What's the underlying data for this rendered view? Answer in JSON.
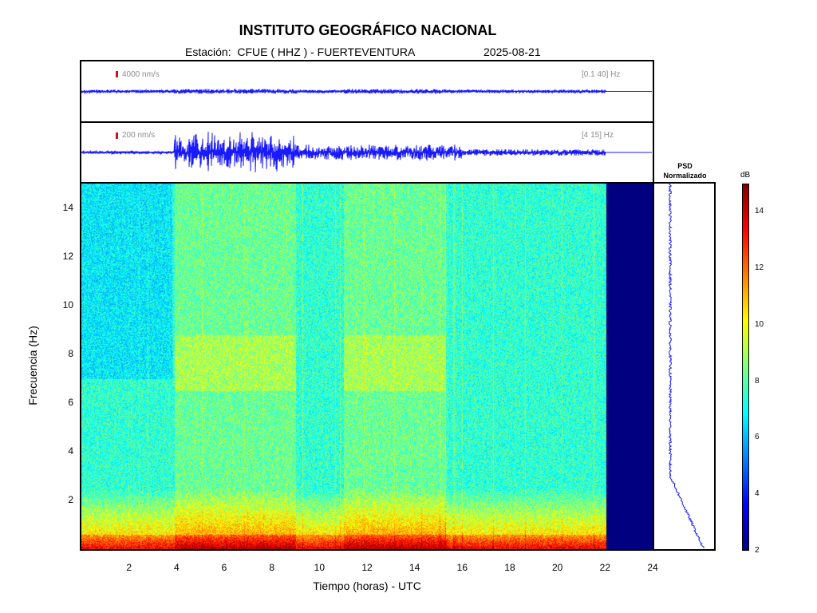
{
  "header": {
    "title": "INSTITUTO GEOGRÁFICO NACIONAL",
    "station": "Estación:  CFUE ( HHZ ) - FUERTEVENTURA",
    "date": "2025-08-21"
  },
  "trace_panels": [
    {
      "scale_label": "4000 nm/s",
      "band_label": "[0.1 40] Hz"
    },
    {
      "scale_label": "200 nm/s",
      "band_label": "[4 15] Hz"
    }
  ],
  "psd": {
    "title_line1": "PSD",
    "title_line2": "Normalizado"
  },
  "colorbar": {
    "unit": "dB",
    "ticks": [
      2,
      4,
      6,
      8,
      10,
      12,
      14
    ],
    "range": [
      2,
      15
    ]
  },
  "chart_data": {
    "type": "heatmap",
    "title": "INSTITUTO GEOGRÁFICO NACIONAL",
    "xlabel": "Tiempo (horas) - UTC",
    "ylabel": "Frecuencia  (Hz)",
    "xlim": [
      0,
      24
    ],
    "ylim": [
      0,
      15
    ],
    "xticks": [
      2,
      4,
      6,
      8,
      10,
      12,
      14,
      16,
      18,
      20,
      22,
      24
    ],
    "yticks": [
      2,
      4,
      6,
      8,
      10,
      12,
      14
    ],
    "data_end_hour": 22.05,
    "active_intervals_hours": [
      [
        3.9,
        9.0
      ],
      [
        11.0,
        15.3
      ]
    ],
    "colormap": [
      "#000080",
      "#0000ff",
      "#0080ff",
      "#00ffff",
      "#80ff80",
      "#ffff00",
      "#ff8000",
      "#ff0000",
      "#800000"
    ]
  }
}
